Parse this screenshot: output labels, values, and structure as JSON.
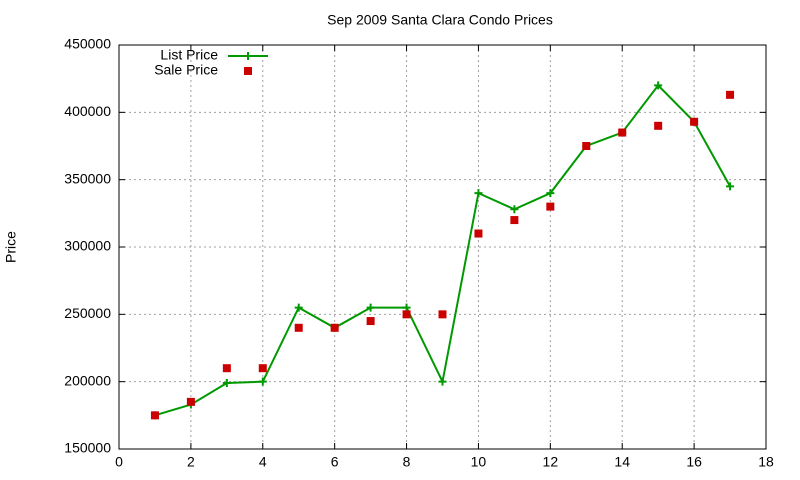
{
  "chart_data": {
    "type": "line",
    "title": "Sep 2009 Santa Clara Condo Prices",
    "y_label": "Price",
    "x": [
      1,
      2,
      3,
      4,
      5,
      6,
      7,
      8,
      9,
      10,
      11,
      12,
      13,
      14,
      15,
      16,
      17
    ],
    "series": [
      {
        "name": "List Price",
        "color": "#009900",
        "mode": "lines+markers",
        "values": [
          175000,
          183000,
          199000,
          200000,
          255000,
          240000,
          255000,
          255000,
          200000,
          340000,
          328000,
          340000,
          375000,
          385000,
          420000,
          393000,
          345000
        ]
      },
      {
        "name": "Sale Price",
        "color": "#cc0000",
        "mode": "markers",
        "values": [
          175000,
          185000,
          210000,
          210000,
          240000,
          240000,
          245000,
          250000,
          250000,
          310000,
          320000,
          330000,
          375000,
          385000,
          390000,
          393000,
          413000
        ]
      }
    ],
    "xlim": [
      0,
      18
    ],
    "xticks": [
      0,
      2,
      4,
      6,
      8,
      10,
      12,
      14,
      16,
      18
    ],
    "ylim": [
      150000,
      450000
    ],
    "yticks": [
      150000,
      200000,
      250000,
      300000,
      350000,
      400000,
      450000
    ],
    "grid": true,
    "legend": "top-left"
  }
}
